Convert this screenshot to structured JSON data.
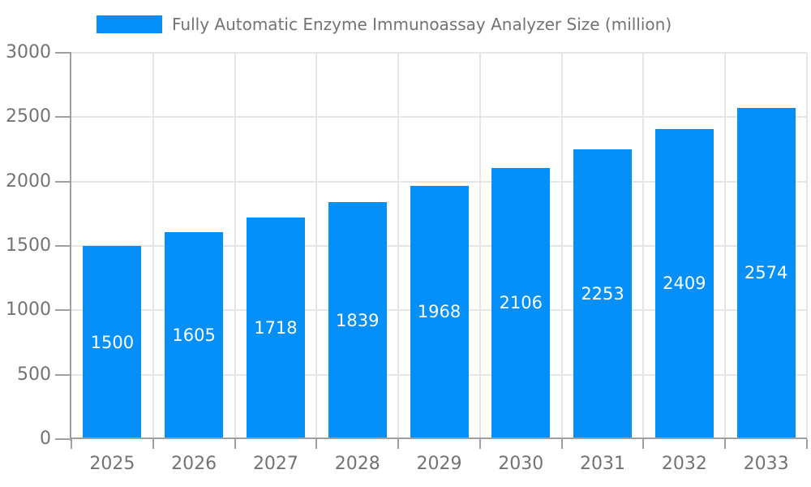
{
  "chart_data": {
    "type": "bar",
    "title": "",
    "legend": "Fully Automatic Enzyme Immunoassay Analyzer Size (million)",
    "legend_position": "top",
    "categories": [
      "2025",
      "2026",
      "2027",
      "2028",
      "2029",
      "2030",
      "2031",
      "2032",
      "2033"
    ],
    "series": [
      {
        "name": "Fully Automatic Enzyme Immunoassay Analyzer Size (million)",
        "values": [
          1500,
          1605,
          1718,
          1839,
          1968,
          2106,
          2253,
          2409,
          2574
        ]
      }
    ],
    "value_labels_shown": true,
    "xlabel": "",
    "ylabel": "",
    "ylim": [
      0,
      3000
    ],
    "y_ticks": [
      0,
      500,
      1000,
      1500,
      2000,
      2500,
      3000
    ],
    "grid": true,
    "colors": {
      "bar": "#0490f8",
      "grid": "#e5e5e8",
      "axis": "#9f9f9f",
      "tick_text": "#737373",
      "legend_text": "#737373",
      "value_text": "#ffffff",
      "background": "#ffffff"
    }
  }
}
